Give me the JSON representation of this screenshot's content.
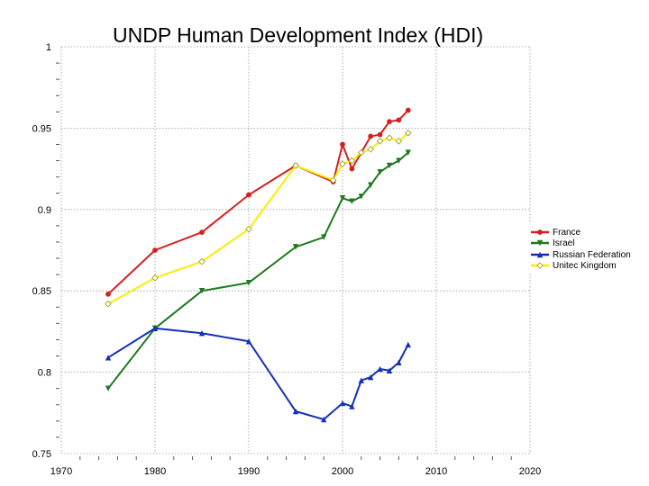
{
  "chart_data": {
    "type": "line",
    "title": "UNDP Human Development Index (HDI)",
    "xlabel": "",
    "ylabel": "",
    "xlim": [
      1970,
      2020
    ],
    "ylim": [
      0.75,
      1
    ],
    "x_ticks": [
      1970,
      1980,
      1990,
      2000,
      2010,
      2020
    ],
    "x_tick_labels": [
      "1970",
      "1980",
      "1990",
      "2000",
      "2010",
      "2020"
    ],
    "y_ticks": [
      0.75,
      0.8,
      0.85,
      0.9,
      0.95,
      1
    ],
    "y_tick_labels": [
      "0.75",
      "0.8",
      "0.85",
      "0.9",
      "0.95",
      "1"
    ],
    "grid": true,
    "legend_position": "right",
    "series": [
      {
        "name": "France",
        "color": "#d62020",
        "marker": "circle",
        "points": [
          [
            1975,
            0.848
          ],
          [
            1980,
            0.875
          ],
          [
            1985,
            0.886
          ],
          [
            1990,
            0.909
          ],
          [
            1995,
            0.927
          ],
          [
            1999,
            0.917
          ],
          [
            2000,
            0.94
          ],
          [
            2001,
            0.925
          ],
          [
            2003,
            0.945
          ],
          [
            2004,
            0.946
          ],
          [
            2005,
            0.954
          ],
          [
            2006,
            0.955
          ],
          [
            2007,
            0.961
          ]
        ]
      },
      {
        "name": "Israel",
        "color": "#1e7a1e",
        "marker": "triangle-down",
        "points": [
          [
            1975,
            0.79
          ],
          [
            1980,
            0.827
          ],
          [
            1985,
            0.85
          ],
          [
            1990,
            0.855
          ],
          [
            1995,
            0.877
          ],
          [
            1998,
            0.883
          ],
          [
            2000,
            0.907
          ],
          [
            2001,
            0.905
          ],
          [
            2002,
            0.908
          ],
          [
            2003,
            0.915
          ],
          [
            2004,
            0.923
          ],
          [
            2005,
            0.927
          ],
          [
            2006,
            0.93
          ],
          [
            2007,
            0.935
          ]
        ]
      },
      {
        "name": "Russian Federation",
        "color": "#1530b8",
        "marker": "triangle-up",
        "points": [
          [
            1975,
            0.809
          ],
          [
            1980,
            0.827
          ],
          [
            1985,
            0.824
          ],
          [
            1990,
            0.819
          ],
          [
            1995,
            0.776
          ],
          [
            1998,
            0.771
          ],
          [
            2000,
            0.781
          ],
          [
            2001,
            0.779
          ],
          [
            2002,
            0.795
          ],
          [
            2003,
            0.797
          ],
          [
            2004,
            0.802
          ],
          [
            2005,
            0.801
          ],
          [
            2006,
            0.806
          ],
          [
            2007,
            0.817
          ]
        ]
      },
      {
        "name": "Unitec Kingdom",
        "color": "#f5f000",
        "marker": "diamond",
        "points": [
          [
            1975,
            0.842
          ],
          [
            1980,
            0.858
          ],
          [
            1985,
            0.868
          ],
          [
            1990,
            0.888
          ],
          [
            1995,
            0.927
          ],
          [
            1999,
            0.918
          ],
          [
            2000,
            0.928
          ],
          [
            2001,
            0.93
          ],
          [
            2002,
            0.935
          ],
          [
            2003,
            0.937
          ],
          [
            2004,
            0.942
          ],
          [
            2005,
            0.944
          ],
          [
            2006,
            0.942
          ],
          [
            2007,
            0.947
          ]
        ]
      }
    ]
  }
}
